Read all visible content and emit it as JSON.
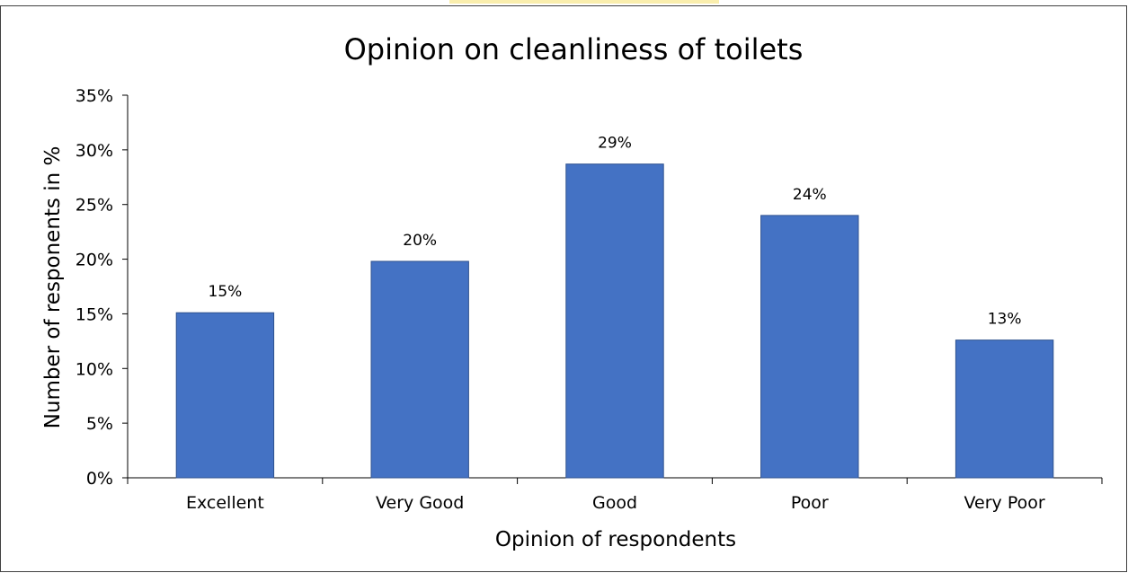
{
  "chart_data": {
    "type": "bar",
    "title": "Opinion on cleanliness of toilets",
    "xlabel": "Opinion of respondents",
    "ylabel": "Number of responents in %",
    "categories": [
      "Excellent",
      "Very Good",
      "Good",
      "Poor",
      "Very Poor"
    ],
    "values": [
      15.1,
      19.8,
      28.7,
      24.0,
      12.6
    ],
    "data_labels": [
      "15%",
      "20%",
      "29%",
      "24%",
      "13%"
    ],
    "ylim": [
      0,
      35
    ],
    "yticks": [
      0,
      5,
      10,
      15,
      20,
      25,
      30,
      35
    ],
    "ytick_labels": [
      "0%",
      "5%",
      "10%",
      "15%",
      "20%",
      "25%",
      "30%",
      "35%"
    ],
    "grid": false,
    "legend": "none",
    "bar_color": "#4472c4",
    "bar_edge_color": "#2f528f"
  }
}
